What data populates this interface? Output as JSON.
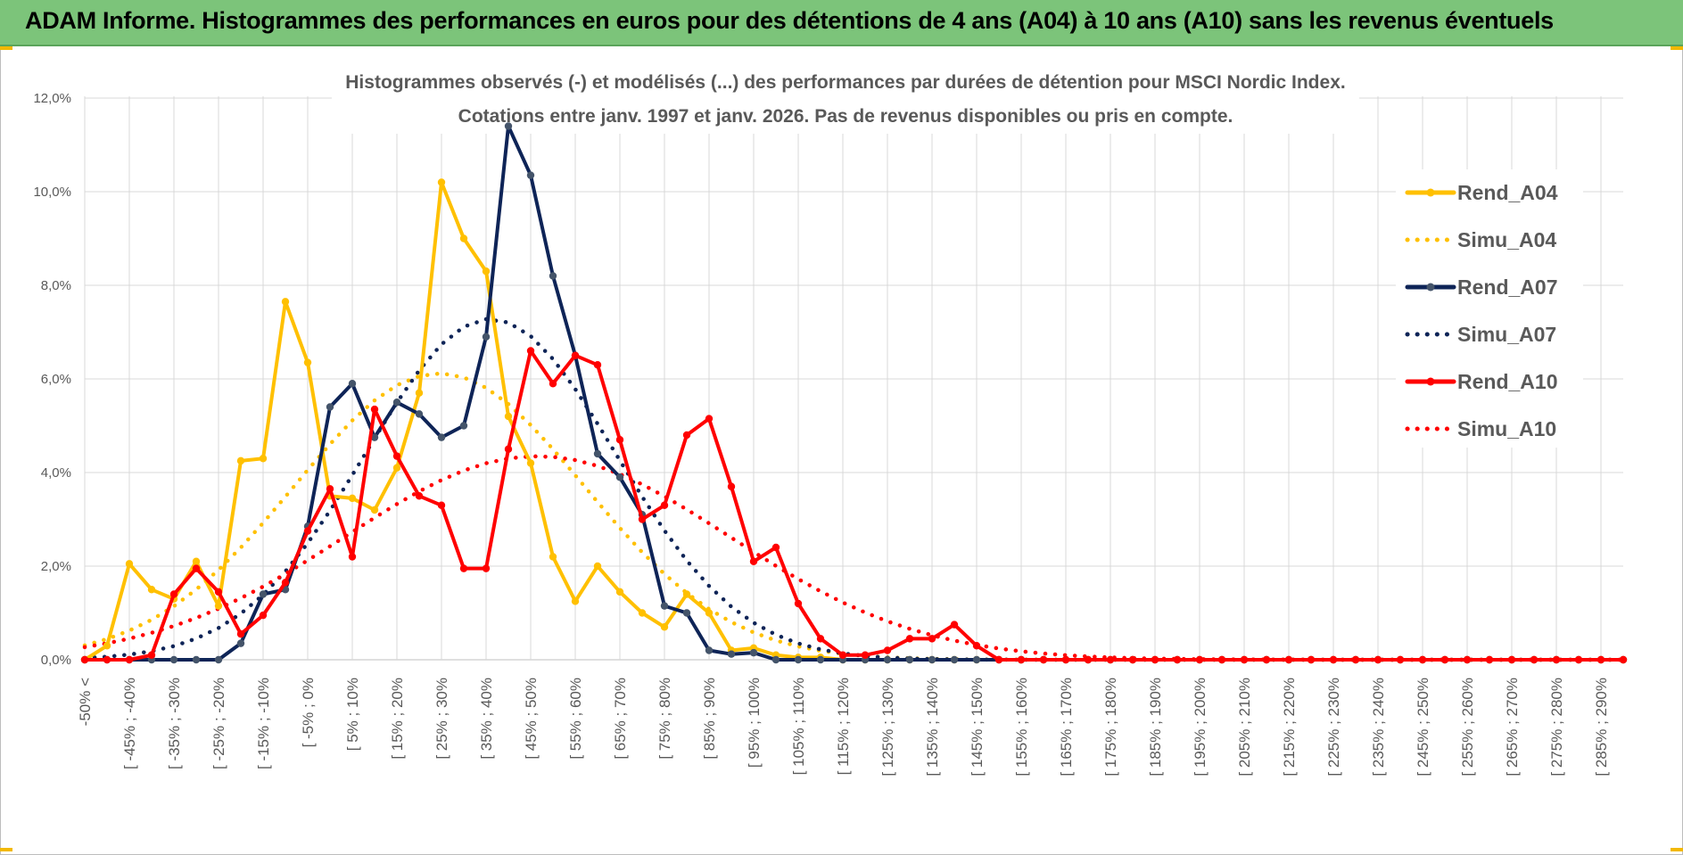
{
  "page": {
    "header_title": "ADAM Informe. Histogrammes des performances en euros pour des détentions de 4 ans (A04) à 10 ans (A10) sans les revenus éventuels"
  },
  "chart_data": {
    "type": "line",
    "title": "Histogrammes observés (-) et modélisés (...) des performances par durées de détention pour MSCI Nordic Index.",
    "subtitle": "Cotations entre janv. 1997 et janv. 2026. Pas de revenus disponibles ou pris en compte.",
    "xlabel": "",
    "ylabel": "",
    "ylim": [
      0,
      0.12
    ],
    "y_ticks": [
      "0,0%",
      "2,0%",
      "4,0%",
      "6,0%",
      "8,0%",
      "10,0%",
      "12,0%"
    ],
    "x_labels": [
      "-50% <",
      "[ -45% ; -40%",
      "[ -35% ; -30%",
      "[ -25% ; -20%",
      "[ -15% ; -10%",
      "[ -5% ; 0%",
      "[ 5% ; 10%",
      "[ 15% ; 20%",
      "[ 25% ; 30%",
      "[ 35% ; 40%",
      "[ 45% ; 50%",
      "[ 55% ; 60%",
      "[ 65% ; 70%",
      "[ 75% ; 80%",
      "[ 85% ; 90%",
      "[ 95% ; 100%",
      "[ 105% ; 110%",
      "[ 115% ; 120%",
      "[ 125% ; 130%",
      "[ 135% ; 140%",
      "[ 145% ; 150%",
      "[ 155% ; 160%",
      "[ 165% ; 170%",
      "[ 175% ; 180%",
      "[ 185% ; 190%",
      "[ 195% ; 200%",
      "[ 205% ; 210%",
      "[ 215% ; 220%",
      "[ 225% ; 230%",
      "[ 235% ; 240%",
      "[ 245% ; 250%",
      "[ 255% ; 260%",
      "[ 265% ; 270%",
      "[ 275% ; 280%",
      "[ 285% ; 290%"
    ],
    "n_points": 70,
    "series": [
      {
        "name": "Rend_A04",
        "color": "#ffc000",
        "style": "solid",
        "markers": true,
        "values": [
          0.0,
          0.003,
          0.0205,
          0.015,
          0.013,
          0.021,
          0.0115,
          0.0425,
          0.043,
          0.0765,
          0.0635,
          0.035,
          0.0345,
          0.032,
          0.041,
          0.057,
          0.102,
          0.09,
          0.083,
          0.052,
          0.042,
          0.022,
          0.0125,
          0.02,
          0.0145,
          0.01,
          0.007,
          0.014,
          0.01,
          0.002,
          0.0025,
          0.001,
          0.0005,
          0.0005,
          0,
          0,
          0,
          0,
          0,
          0,
          0,
          0,
          0,
          0,
          0,
          0,
          0,
          0,
          0,
          0,
          0,
          0,
          0,
          0,
          0,
          0,
          0,
          0,
          0,
          0,
          0,
          0,
          0,
          0,
          0,
          0,
          0,
          0,
          0,
          0
        ]
      },
      {
        "name": "Simu_A04",
        "color": "#ffc000",
        "style": "dotted",
        "markers": false,
        "normal": {
          "peak": 0.0612,
          "center": 15.9,
          "sd": 6.5
        }
      },
      {
        "name": "Rend_A07",
        "color": "#0e2457",
        "style": "solid",
        "markers": true,
        "values": [
          0,
          0,
          0,
          0,
          0,
          0,
          0,
          0.0035,
          0.014,
          0.015,
          0.0285,
          0.054,
          0.059,
          0.0475,
          0.055,
          0.0525,
          0.0475,
          0.05,
          0.069,
          0.114,
          0.1035,
          0.082,
          0.065,
          0.044,
          0.039,
          0.031,
          0.0115,
          0.01,
          0.002,
          0.0012,
          0.0015,
          0,
          0,
          0,
          0,
          0,
          0,
          0,
          0,
          0,
          0,
          0,
          0,
          0,
          0,
          0,
          0,
          0,
          0,
          0,
          0,
          0,
          0,
          0,
          0,
          0,
          0,
          0,
          0,
          0,
          0,
          0,
          0,
          0,
          0,
          0,
          0,
          0,
          0,
          0
        ]
      },
      {
        "name": "Simu_A07",
        "color": "#0e2457",
        "style": "dotted",
        "markers": false,
        "normal": {
          "peak": 0.0728,
          "center": 18.2,
          "sd": 5.6
        }
      },
      {
        "name": "Rend_A10",
        "color": "#ff0000",
        "style": "solid",
        "markers": true,
        "values": [
          0,
          0,
          0,
          0.001,
          0.014,
          0.0195,
          0.0145,
          0.0055,
          0.0095,
          0.0165,
          0.0275,
          0.0365,
          0.022,
          0.0535,
          0.0435,
          0.035,
          0.033,
          0.0195,
          0.0195,
          0.045,
          0.066,
          0.059,
          0.065,
          0.063,
          0.047,
          0.03,
          0.033,
          0.048,
          0.0515,
          0.037,
          0.021,
          0.024,
          0.012,
          0.0045,
          0.001,
          0.001,
          0.002,
          0.0045,
          0.0045,
          0.0075,
          0.003,
          0,
          0,
          0,
          0,
          0,
          0,
          0,
          0,
          0,
          0,
          0,
          0,
          0,
          0,
          0,
          0,
          0,
          0,
          0,
          0,
          0,
          0,
          0,
          0,
          0,
          0,
          0,
          0,
          0
        ]
      },
      {
        "name": "Simu_A10",
        "color": "#ff0000",
        "style": "dotted",
        "markers": false,
        "normal": {
          "peak": 0.0435,
          "center": 20.3,
          "sd": 8.6
        }
      }
    ],
    "legend_position": "right"
  }
}
